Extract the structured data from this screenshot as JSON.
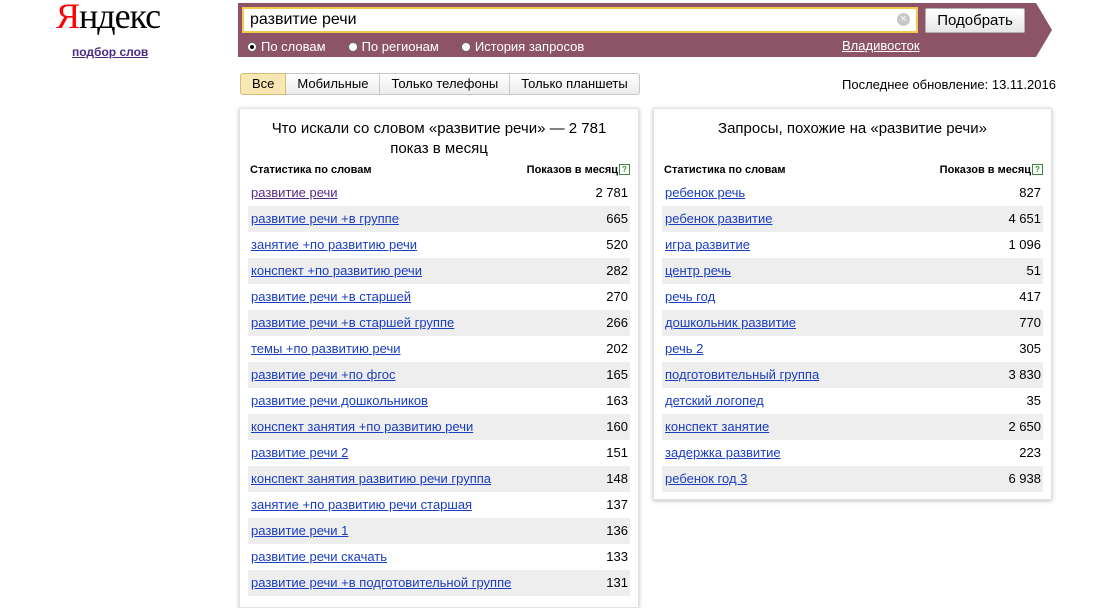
{
  "logo": {
    "first": "Я",
    "rest": "ндекс"
  },
  "sublink": "подбор слов",
  "search": {
    "value": "развитие речи",
    "button": "Подобрать"
  },
  "radios": [
    {
      "label": "По словам",
      "selected": true
    },
    {
      "label": "По регионам",
      "selected": false
    },
    {
      "label": "История запросов",
      "selected": false
    }
  ],
  "region": "Владивосток",
  "tabs": [
    "Все",
    "Мобильные",
    "Только телефоны",
    "Только планшеты"
  ],
  "updated": "Последнее обновление: 13.11.2016",
  "left": {
    "title": "Что искали со словом «развитие речи» — 2 781 показ в месяц",
    "col1": "Статистика по словам",
    "col2": "Показов в месяц",
    "help": "?",
    "rows": [
      {
        "kw": "развитие речи",
        "n": "2 781"
      },
      {
        "kw": "развитие речи +в группе",
        "n": "665"
      },
      {
        "kw": "занятие +по развитию речи",
        "n": "520"
      },
      {
        "kw": "конспект +по развитию речи",
        "n": "282"
      },
      {
        "kw": "развитие речи +в старшей",
        "n": "270"
      },
      {
        "kw": "развитие речи +в старшей группе",
        "n": "266"
      },
      {
        "kw": "темы +по развитию речи",
        "n": "202"
      },
      {
        "kw": "развитие речи +по фгос",
        "n": "165"
      },
      {
        "kw": "развитие речи дошкольников",
        "n": "163"
      },
      {
        "kw": "конспект занятия +по развитию речи",
        "n": "160"
      },
      {
        "kw": "развитие речи 2",
        "n": "151"
      },
      {
        "kw": "конспект занятия развитию речи группа",
        "n": "148"
      },
      {
        "kw": "занятие +по развитию речи старшая",
        "n": "137"
      },
      {
        "kw": "развитие речи 1",
        "n": "136"
      },
      {
        "kw": "развитие речи скачать",
        "n": "133"
      },
      {
        "kw": "развитие речи +в подготовительной группе",
        "n": "131"
      }
    ]
  },
  "right": {
    "title": "Запросы, похожие на «развитие речи»",
    "col1": "Статистика по словам",
    "col2": "Показов в месяц",
    "help": "?",
    "rows": [
      {
        "kw": "ребенок речь",
        "n": "827"
      },
      {
        "kw": "ребенок развитие",
        "n": "4 651"
      },
      {
        "kw": "игра развитие",
        "n": "1 096"
      },
      {
        "kw": "центр речь",
        "n": "51"
      },
      {
        "kw": "речь год",
        "n": "417"
      },
      {
        "kw": "дошкольник развитие",
        "n": "770"
      },
      {
        "kw": "речь 2",
        "n": "305"
      },
      {
        "kw": "подготовительный группа",
        "n": "3 830"
      },
      {
        "kw": "детский логопед",
        "n": "35"
      },
      {
        "kw": "конспект занятие",
        "n": "2 650"
      },
      {
        "kw": "задержка развитие",
        "n": "223"
      },
      {
        "kw": "ребенок год 3",
        "n": "6 938"
      }
    ]
  }
}
